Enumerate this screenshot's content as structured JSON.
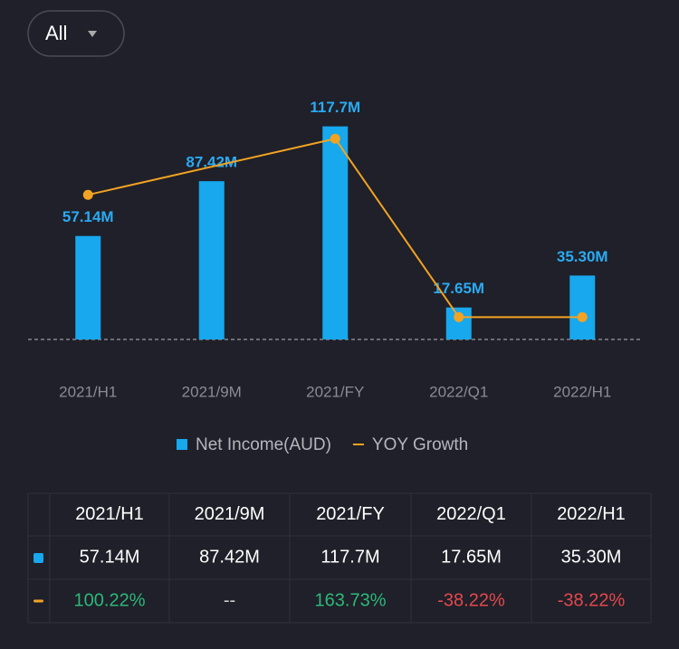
{
  "filter": {
    "label": "All"
  },
  "chart_data": {
    "type": "bar-line",
    "categories": [
      "2021/H1",
      "2021/9M",
      "2021/FY",
      "2022/Q1",
      "2022/H1"
    ],
    "series": [
      {
        "name": "Net Income(AUD)",
        "type": "bar",
        "color": "#17a8ee",
        "values": [
          57.14,
          87.42,
          117.7,
          17.65,
          35.3
        ],
        "value_labels": [
          "57.14M",
          "87.42M",
          "117.7M",
          "17.65M",
          "35.30M"
        ]
      },
      {
        "name": "YOY Growth",
        "type": "line",
        "axis": "y2",
        "color": "#f2a323",
        "values": [
          100.22,
          null,
          163.73,
          -38.22,
          -38.22
        ],
        "value_labels": [
          "100.22%",
          "--",
          "163.73%",
          "-38.22%",
          "-38.22%"
        ]
      }
    ],
    "ylim": [
      0,
      120
    ],
    "y2lim": [
      -63.5,
      182.4
    ],
    "grid": false
  }
}
